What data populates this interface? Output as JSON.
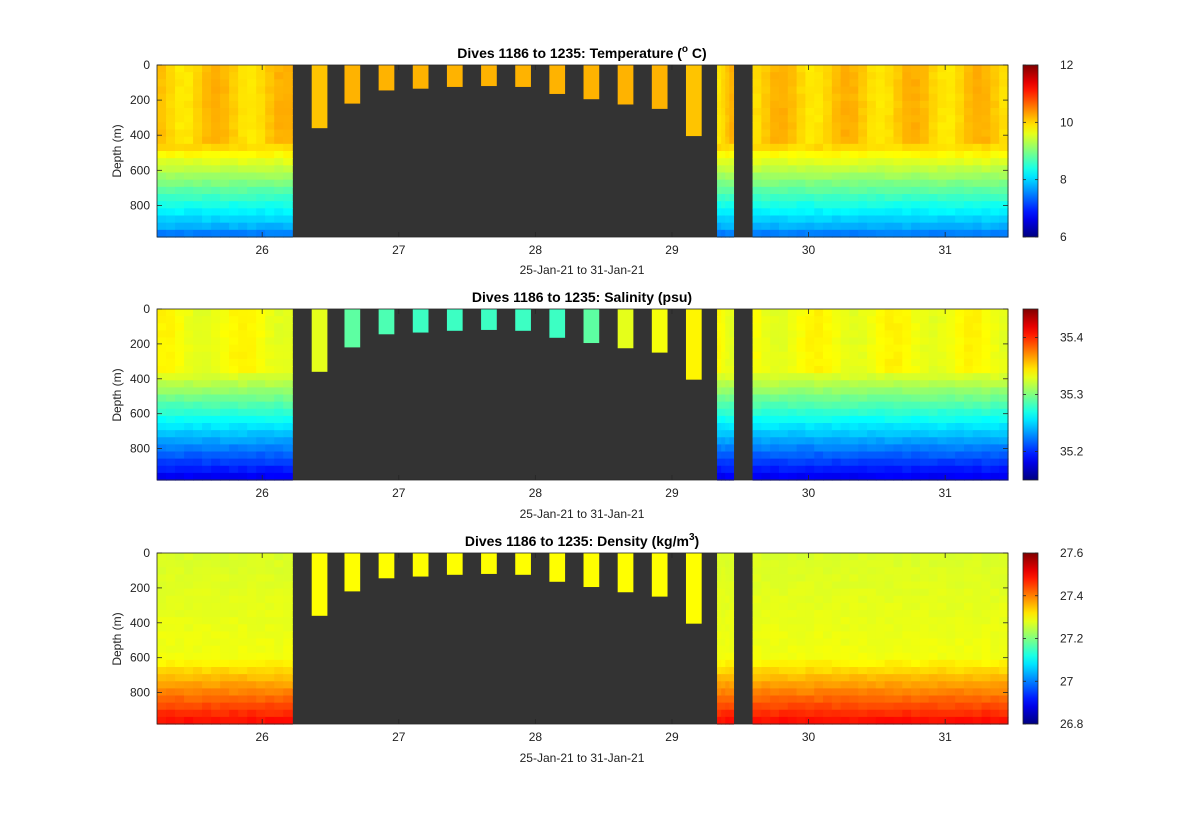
{
  "figure": {
    "background": "#ffffff",
    "nodata_color": "#333333",
    "colormap": "jet"
  },
  "chart_data": [
    {
      "type": "heatmap",
      "title_main": "Dives 1186 to 1235: Temperature (",
      "title_sup": "o",
      "title_tail": " C)",
      "xlabel": "25-Jan-21 to 31-Jan-21",
      "ylabel": "Depth (m)",
      "xlim": [
        25.23,
        31.46
      ],
      "ylim": [
        0,
        980
      ],
      "xticks": [
        26,
        27,
        28,
        29,
        30,
        31
      ],
      "yticks": [
        0,
        200,
        400,
        600,
        800
      ],
      "clim": [
        6,
        12
      ],
      "cticks": [
        6,
        8,
        10,
        12
      ],
      "field": "temperature",
      "top_value": 10.05,
      "shallow_dive_values": [
        10.1,
        10.2,
        10.2,
        10.2,
        10.2,
        10.2,
        10.2,
        10.2,
        10.2,
        10.2,
        10.2,
        10.1
      ]
    },
    {
      "type": "heatmap",
      "title_main": "Dives 1186 to 1235: Salinity (psu)",
      "title_sup": "",
      "title_tail": "",
      "xlabel": "25-Jan-21 to 31-Jan-21",
      "ylabel": "Depth (m)",
      "xlim": [
        25.23,
        31.46
      ],
      "ylim": [
        0,
        980
      ],
      "xticks": [
        26,
        27,
        28,
        29,
        30,
        31
      ],
      "yticks": [
        0,
        200,
        400,
        600,
        800
      ],
      "clim": [
        35.15,
        35.45
      ],
      "cticks": [
        35.2,
        35.3,
        35.4
      ],
      "field": "salinity",
      "top_value": 35.34,
      "shallow_dive_values": [
        35.33,
        35.29,
        35.285,
        35.28,
        35.28,
        35.28,
        35.28,
        35.28,
        35.29,
        35.33,
        35.335,
        35.34
      ]
    },
    {
      "type": "heatmap",
      "title_main": "Dives 1186 to 1235: Density (kg/m",
      "title_sup": "3",
      "title_tail": ")",
      "xlabel": "25-Jan-21 to 31-Jan-21",
      "ylabel": "Depth (m)",
      "xlim": [
        25.23,
        31.46
      ],
      "ylim": [
        0,
        980
      ],
      "xticks": [
        26,
        27,
        28,
        29,
        30,
        31
      ],
      "yticks": [
        0,
        200,
        400,
        600,
        800
      ],
      "clim": [
        26.8,
        27.6
      ],
      "cticks": [
        26.8,
        27,
        27.2,
        27.4,
        27.6
      ],
      "field": "density",
      "top_value": 27.28,
      "shallow_dive_values": [
        27.3,
        27.3,
        27.3,
        27.3,
        27.3,
        27.3,
        27.3,
        27.3,
        27.3,
        27.3,
        27.3,
        27.3
      ]
    }
  ],
  "dives": {
    "deep_left": {
      "x_start": 25.23,
      "x_end": 26.22,
      "max_depth": 980
    },
    "shallow": [
      {
        "x": 26.42,
        "max_depth": 360
      },
      {
        "x": 26.66,
        "max_depth": 220
      },
      {
        "x": 26.91,
        "max_depth": 145
      },
      {
        "x": 27.16,
        "max_depth": 135
      },
      {
        "x": 27.41,
        "max_depth": 125
      },
      {
        "x": 27.66,
        "max_depth": 120
      },
      {
        "x": 27.91,
        "max_depth": 125
      },
      {
        "x": 28.16,
        "max_depth": 165
      },
      {
        "x": 28.41,
        "max_depth": 195
      },
      {
        "x": 28.66,
        "max_depth": 225
      },
      {
        "x": 28.91,
        "max_depth": 250
      },
      {
        "x": 29.16,
        "max_depth": 405
      }
    ],
    "shallow_width": 0.115,
    "single_deep": {
      "x_start": 29.33,
      "x_end": 29.45,
      "max_depth": 980
    },
    "deep_right": {
      "x_start": 29.59,
      "x_end": 31.46,
      "max_depth": 980
    }
  }
}
